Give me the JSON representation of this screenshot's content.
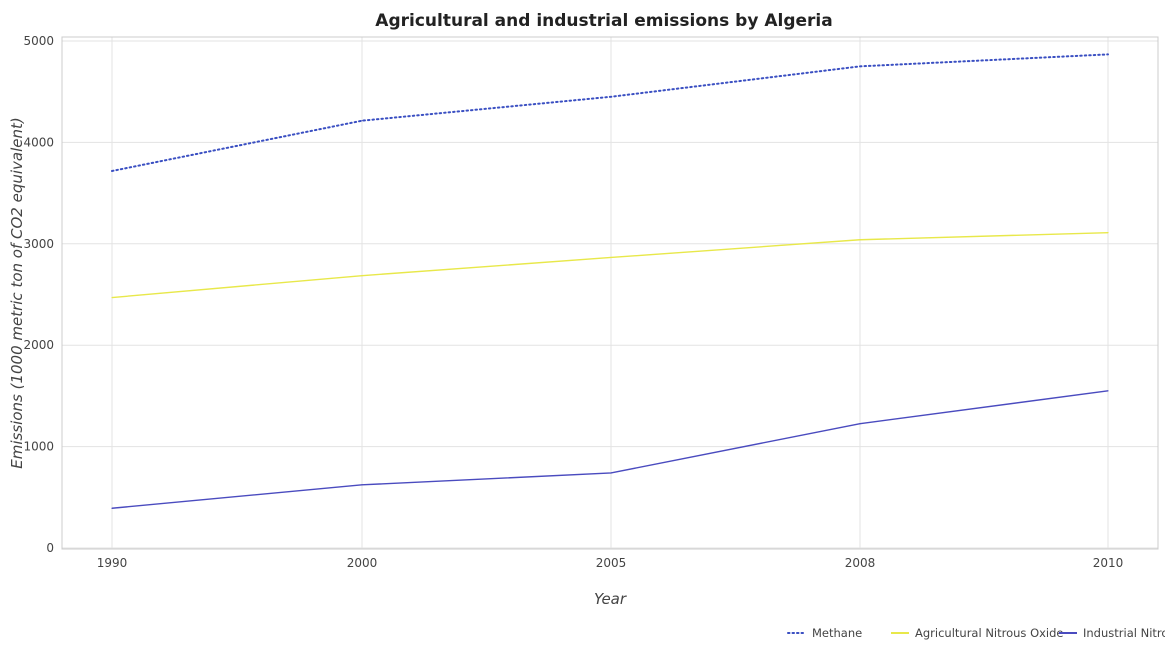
{
  "chart_data": {
    "type": "line",
    "title": "Agricultural and industrial emissions by Algeria",
    "xlabel": "Year",
    "ylabel": "Emissions (1000 metric ton of CO2 equivalent)",
    "categories": [
      "1990",
      "2000",
      "2005",
      "2008",
      "2010"
    ],
    "ylim": [
      0,
      5000
    ],
    "yticks": [
      "0",
      "1000",
      "2000",
      "3000",
      "4000",
      "5000"
    ],
    "grid": true,
    "legend_position": "bottom-right",
    "series": [
      {
        "name": "Methane",
        "color": "#3a4fc2",
        "style": "dotted",
        "values": [
          3718,
          4214,
          4450,
          4750,
          4868
        ]
      },
      {
        "name": "Agricultural Nitrous Oxide",
        "color": "#e8e84a",
        "style": "solid",
        "values": [
          2470,
          2686,
          2865,
          3040,
          3110
        ]
      },
      {
        "name": "Industrial Nitrous Oxide",
        "color": "#4a4bbf",
        "style": "solid",
        "values": [
          392,
          623,
          740,
          1226,
          1550
        ]
      }
    ]
  }
}
